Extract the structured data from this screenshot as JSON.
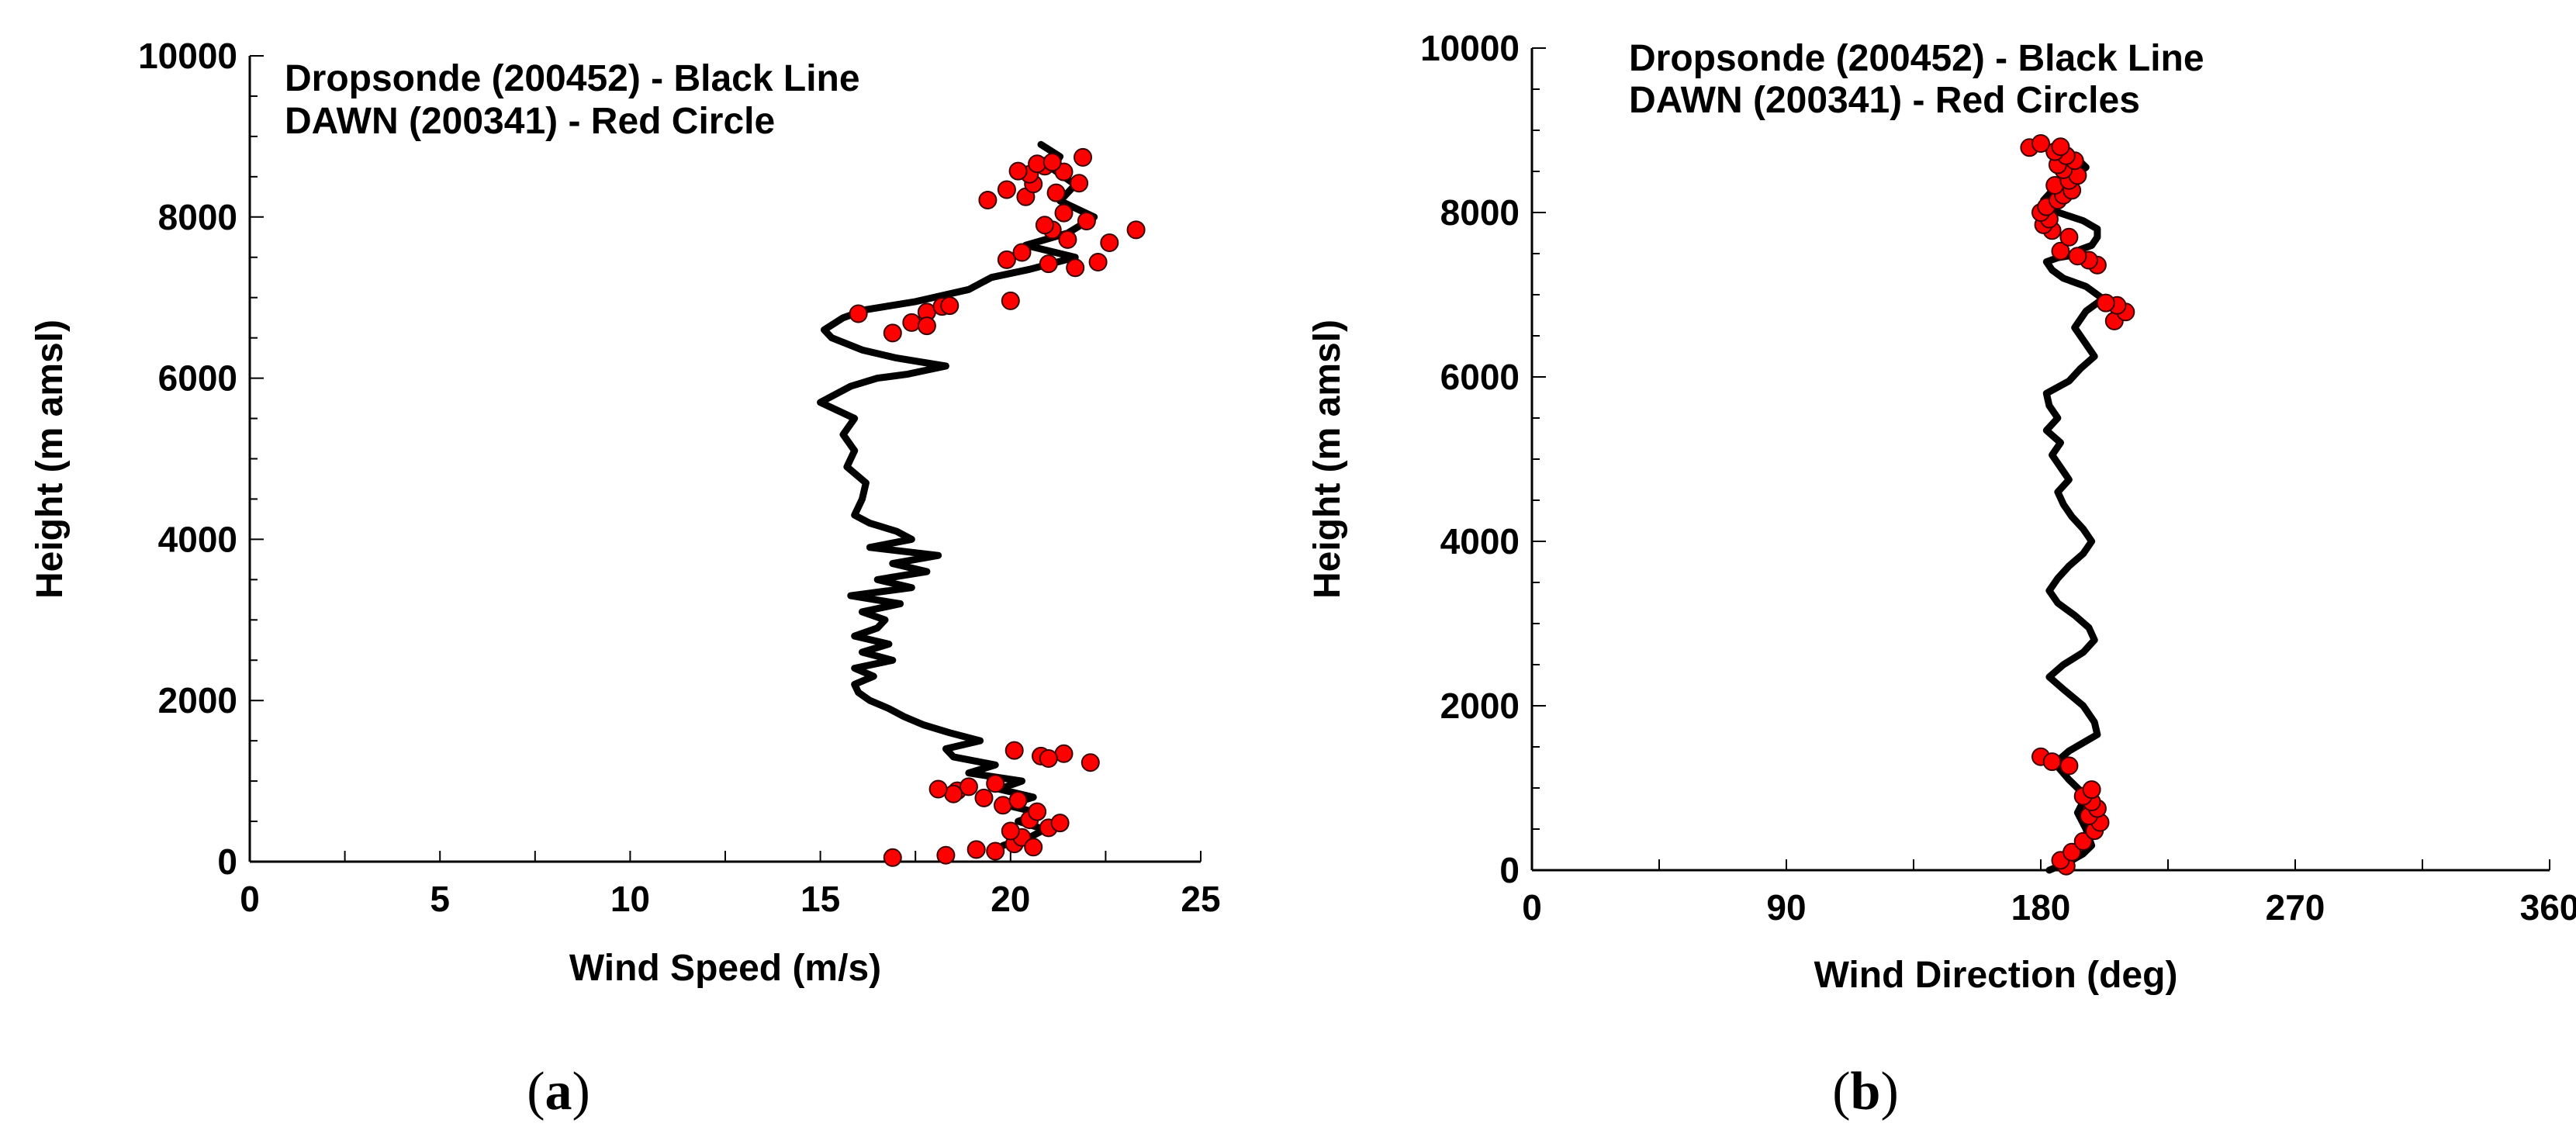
{
  "chart_data": [
    {
      "type": "scatter",
      "panel": "a",
      "caption": {
        "open": "(",
        "letter": "a",
        "close": ")"
      },
      "title": "",
      "legend": [
        "Dropsonde (200452) - Black Line",
        "DAWN (200341) - Red Circle"
      ],
      "xlabel": "Wind Speed (m/s)",
      "ylabel": "Height (m amsl)",
      "xlim": [
        0,
        25
      ],
      "ylim": [
        0,
        10000
      ],
      "xticks": [
        0,
        5,
        10,
        15,
        20,
        25
      ],
      "yticks": [
        0,
        2000,
        4000,
        6000,
        8000,
        10000
      ],
      "series": [
        {
          "name": "Dropsonde (200452)",
          "style": "line",
          "color": "#000000",
          "x": [
            19.8,
            20.5,
            20.9,
            20.2,
            20.8,
            19.9,
            20.6,
            19.7,
            20.3,
            18.9,
            19.6,
            18.5,
            18.3,
            19.2,
            18.4,
            17.7,
            17.2,
            16.8,
            16.3,
            16.0,
            15.9,
            16.4,
            15.9,
            16.9,
            16.1,
            16.8,
            15.9,
            16.5,
            16.7,
            16.1,
            17.1,
            15.8,
            17.4,
            16.5,
            17.8,
            16.9,
            18.1,
            16.3,
            17.4,
            17.0,
            16.3,
            15.9,
            16.1,
            16.2,
            15.7,
            15.9,
            15.6,
            15.9,
            15.0,
            15.8,
            16.5,
            17.3,
            18.3,
            17.0,
            16.1,
            15.3,
            15.1,
            15.6,
            16.2,
            17.5,
            18.9,
            19.5,
            20.5,
            21.7,
            20.4,
            21.5,
            22.2,
            21.3,
            21.7,
            21.1,
            21.3,
            20.8
          ],
          "y": [
            200,
            300,
            400,
            500,
            600,
            700,
            800,
            900,
            1000,
            1100,
            1200,
            1300,
            1400,
            1500,
            1600,
            1700,
            1800,
            1900,
            2000,
            2100,
            2200,
            2300,
            2400,
            2500,
            2600,
            2700,
            2800,
            2900,
            3000,
            3100,
            3200,
            3300,
            3400,
            3500,
            3600,
            3700,
            3800,
            3900,
            4000,
            4100,
            4200,
            4300,
            4500,
            4700,
            4900,
            5100,
            5300,
            5500,
            5700,
            5900,
            6000,
            6050,
            6150,
            6250,
            6350,
            6500,
            6600,
            6750,
            6850,
            6950,
            7100,
            7250,
            7350,
            7500,
            7650,
            7800,
            8000,
            8200,
            8400,
            8600,
            8750,
            8900
          ]
        },
        {
          "name": "DAWN (200341)",
          "style": "markers",
          "color": "#ff0000",
          "x": [
            16.9,
            18.3,
            19.1,
            19.6,
            20.1,
            20.3,
            20.6,
            21.0,
            20.0,
            20.5,
            21.3,
            20.7,
            19.8,
            20.2,
            18.6,
            19.3,
            18.9,
            19.6,
            18.5,
            18.1,
            20.1,
            20.8,
            21.4,
            22.1,
            21.0,
            16.0,
            16.9,
            17.4,
            17.8,
            18.2,
            17.8,
            18.4,
            20.0,
            19.9,
            20.3,
            21.0,
            21.7,
            22.3,
            21.5,
            22.6,
            21.1,
            22.0,
            23.3,
            21.4,
            20.9,
            20.4,
            19.4,
            19.9,
            20.6,
            21.2,
            21.8,
            20.5,
            21.4,
            20.9,
            20.2,
            20.7,
            21.9,
            21.1
          ],
          "y": [
            50,
            80,
            150,
            130,
            220,
            300,
            180,
            420,
            380,
            520,
            480,
            620,
            700,
            760,
            880,
            790,
            930,
            970,
            840,
            900,
            1380,
            1310,
            1340,
            1230,
            1280,
            6800,
            6560,
            6690,
            6820,
            6890,
            6650,
            6900,
            6960,
            7470,
            7560,
            7420,
            7370,
            7440,
            7720,
            7680,
            7840,
            7950,
            7840,
            8050,
            7900,
            8250,
            8210,
            8340,
            8410,
            8300,
            8420,
            8530,
            8560,
            8630,
            8570,
            8660,
            8740,
            8680
          ]
        }
      ]
    },
    {
      "type": "scatter",
      "panel": "b",
      "caption": {
        "open": "(",
        "letter": "b",
        "close": ")"
      },
      "title": "",
      "legend": [
        "Dropsonde (200452) - Black Line",
        "DAWN (200341) - Red Circles"
      ],
      "xlabel": "Wind Direction (deg)",
      "ylabel": "Height (m amsl)",
      "xlim": [
        0,
        360
      ],
      "ylim": [
        0,
        10000
      ],
      "xticks": [
        0,
        90,
        180,
        270,
        360
      ],
      "yticks": [
        0,
        2000,
        4000,
        6000,
        8000,
        10000
      ],
      "series": [
        {
          "name": "Dropsonde (200452)",
          "style": "line",
          "color": "#000000",
          "x": [
            183,
            190,
            195,
            198,
            196,
            193,
            196,
            190,
            185,
            190,
            195,
            200,
            199,
            195,
            188,
            183,
            188,
            195,
            199,
            197,
            192,
            186,
            183,
            186,
            190,
            195,
            198,
            195,
            191,
            188,
            186,
            190,
            187,
            184,
            187,
            182,
            186,
            183,
            182,
            190,
            194,
            199,
            196,
            192,
            196,
            202,
            196,
            188,
            184,
            182,
            186,
            195,
            194,
            198,
            200,
            200,
            195,
            188,
            182,
            181,
            185,
            192,
            196,
            193,
            188,
            184,
            180
          ],
          "y": [
            0,
            100,
            200,
            300,
            500,
            700,
            900,
            1100,
            1300,
            1450,
            1550,
            1650,
            1800,
            2000,
            2200,
            2350,
            2500,
            2650,
            2800,
            2950,
            3100,
            3250,
            3400,
            3550,
            3700,
            3850,
            4000,
            4150,
            4300,
            4450,
            4600,
            4750,
            4900,
            5050,
            5200,
            5350,
            5500,
            5650,
            5800,
            5950,
            6100,
            6250,
            6400,
            6600,
            6800,
            6950,
            7100,
            7200,
            7300,
            7400,
            7450,
            7500,
            7550,
            7600,
            7700,
            7800,
            7900,
            7980,
            8050,
            8150,
            8300,
            8450,
            8550,
            8650,
            8720,
            8770,
            8790
          ]
        },
        {
          "name": "DAWN (200341)",
          "style": "markers",
          "color": "#ff0000",
          "x": [
            189,
            187,
            191,
            195,
            199,
            201,
            197,
            200,
            198,
            195,
            198,
            180,
            184,
            190,
            206,
            210,
            207,
            203,
            200,
            197,
            193,
            187,
            190,
            184,
            181,
            183,
            180,
            182,
            186,
            188,
            191,
            185,
            190,
            193,
            188,
            186,
            192,
            189,
            185,
            187,
            176,
            180
          ],
          "y": [
            50,
            120,
            220,
            350,
            480,
            580,
            660,
            750,
            830,
            900,
            980,
            1380,
            1320,
            1270,
            6680,
            6790,
            6870,
            6900,
            7360,
            7420,
            7470,
            7530,
            7700,
            7780,
            7850,
            7920,
            8000,
            8070,
            8150,
            8210,
            8270,
            8330,
            8390,
            8450,
            8520,
            8580,
            8630,
            8690,
            8740,
            8800,
            8790,
            8840
          ]
        }
      ]
    }
  ]
}
